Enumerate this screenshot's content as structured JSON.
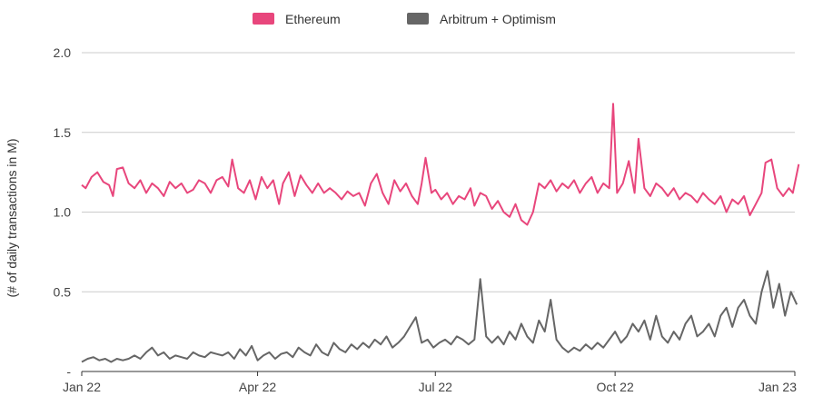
{
  "chart_data": {
    "type": "line",
    "title": "",
    "xlabel": "",
    "ylabel": "(# of daily transactions in M)",
    "ylim": [
      0,
      2.0
    ],
    "y_ticks": [
      {
        "value": 0,
        "label": "-"
      },
      {
        "value": 0.5,
        "label": "0.5"
      },
      {
        "value": 1.0,
        "label": "1.0"
      },
      {
        "value": 1.5,
        "label": "1.5"
      },
      {
        "value": 2.0,
        "label": "2.0"
      }
    ],
    "x_ticks": [
      {
        "date": "2022-01-01",
        "label": "Jan 22"
      },
      {
        "date": "2022-04-01",
        "label": "Apr 22"
      },
      {
        "date": "2022-07-01",
        "label": "Jul 22"
      },
      {
        "date": "2022-10-01",
        "label": "Oct 22"
      },
      {
        "date": "2023-01-01",
        "label": "Jan 23"
      }
    ],
    "grid": true,
    "legend_position": "top-center",
    "series": [
      {
        "name": "Ethereum",
        "color": "#e8467c",
        "points": [
          [
            "2022-01-01",
            1.17
          ],
          [
            "2022-01-03",
            1.15
          ],
          [
            "2022-01-06",
            1.22
          ],
          [
            "2022-01-09",
            1.25
          ],
          [
            "2022-01-12",
            1.19
          ],
          [
            "2022-01-15",
            1.17
          ],
          [
            "2022-01-17",
            1.1
          ],
          [
            "2022-01-19",
            1.27
          ],
          [
            "2022-01-22",
            1.28
          ],
          [
            "2022-01-25",
            1.18
          ],
          [
            "2022-01-28",
            1.15
          ],
          [
            "2022-01-31",
            1.2
          ],
          [
            "2022-02-03",
            1.12
          ],
          [
            "2022-02-06",
            1.18
          ],
          [
            "2022-02-09",
            1.15
          ],
          [
            "2022-02-12",
            1.1
          ],
          [
            "2022-02-15",
            1.19
          ],
          [
            "2022-02-18",
            1.15
          ],
          [
            "2022-02-21",
            1.18
          ],
          [
            "2022-02-24",
            1.12
          ],
          [
            "2022-02-27",
            1.14
          ],
          [
            "2022-03-02",
            1.2
          ],
          [
            "2022-03-05",
            1.18
          ],
          [
            "2022-03-08",
            1.12
          ],
          [
            "2022-03-11",
            1.2
          ],
          [
            "2022-03-14",
            1.22
          ],
          [
            "2022-03-17",
            1.16
          ],
          [
            "2022-03-19",
            1.33
          ],
          [
            "2022-03-22",
            1.15
          ],
          [
            "2022-03-25",
            1.12
          ],
          [
            "2022-03-28",
            1.2
          ],
          [
            "2022-03-31",
            1.08
          ],
          [
            "2022-04-03",
            1.22
          ],
          [
            "2022-04-06",
            1.15
          ],
          [
            "2022-04-09",
            1.2
          ],
          [
            "2022-04-12",
            1.05
          ],
          [
            "2022-04-14",
            1.18
          ],
          [
            "2022-04-17",
            1.25
          ],
          [
            "2022-04-20",
            1.1
          ],
          [
            "2022-04-23",
            1.23
          ],
          [
            "2022-04-26",
            1.17
          ],
          [
            "2022-04-29",
            1.12
          ],
          [
            "2022-05-02",
            1.18
          ],
          [
            "2022-05-05",
            1.12
          ],
          [
            "2022-05-08",
            1.15
          ],
          [
            "2022-05-11",
            1.12
          ],
          [
            "2022-05-14",
            1.08
          ],
          [
            "2022-05-17",
            1.13
          ],
          [
            "2022-05-20",
            1.1
          ],
          [
            "2022-05-23",
            1.12
          ],
          [
            "2022-05-26",
            1.04
          ],
          [
            "2022-05-29",
            1.18
          ],
          [
            "2022-06-01",
            1.24
          ],
          [
            "2022-06-04",
            1.12
          ],
          [
            "2022-06-07",
            1.05
          ],
          [
            "2022-06-10",
            1.2
          ],
          [
            "2022-06-13",
            1.13
          ],
          [
            "2022-06-16",
            1.18
          ],
          [
            "2022-06-19",
            1.1
          ],
          [
            "2022-06-22",
            1.05
          ],
          [
            "2022-06-24",
            1.18
          ],
          [
            "2022-06-26",
            1.34
          ],
          [
            "2022-06-29",
            1.12
          ],
          [
            "2022-07-01",
            1.14
          ],
          [
            "2022-07-04",
            1.08
          ],
          [
            "2022-07-07",
            1.12
          ],
          [
            "2022-07-10",
            1.05
          ],
          [
            "2022-07-13",
            1.1
          ],
          [
            "2022-07-16",
            1.08
          ],
          [
            "2022-07-19",
            1.15
          ],
          [
            "2022-07-21",
            1.04
          ],
          [
            "2022-07-24",
            1.12
          ],
          [
            "2022-07-27",
            1.1
          ],
          [
            "2022-07-30",
            1.02
          ],
          [
            "2022-08-02",
            1.07
          ],
          [
            "2022-08-05",
            1.0
          ],
          [
            "2022-08-08",
            0.97
          ],
          [
            "2022-08-11",
            1.05
          ],
          [
            "2022-08-14",
            0.95
          ],
          [
            "2022-08-17",
            0.92
          ],
          [
            "2022-08-20",
            1.0
          ],
          [
            "2022-08-23",
            1.18
          ],
          [
            "2022-08-26",
            1.15
          ],
          [
            "2022-08-29",
            1.2
          ],
          [
            "2022-09-01",
            1.13
          ],
          [
            "2022-09-04",
            1.18
          ],
          [
            "2022-09-07",
            1.15
          ],
          [
            "2022-09-10",
            1.2
          ],
          [
            "2022-09-13",
            1.12
          ],
          [
            "2022-09-16",
            1.18
          ],
          [
            "2022-09-19",
            1.22
          ],
          [
            "2022-09-22",
            1.12
          ],
          [
            "2022-09-25",
            1.18
          ],
          [
            "2022-09-28",
            1.15
          ],
          [
            "2022-09-30",
            1.68
          ],
          [
            "2022-10-02",
            1.12
          ],
          [
            "2022-10-05",
            1.18
          ],
          [
            "2022-10-08",
            1.32
          ],
          [
            "2022-10-11",
            1.12
          ],
          [
            "2022-10-13",
            1.46
          ],
          [
            "2022-10-16",
            1.15
          ],
          [
            "2022-10-19",
            1.1
          ],
          [
            "2022-10-22",
            1.18
          ],
          [
            "2022-10-25",
            1.15
          ],
          [
            "2022-10-28",
            1.1
          ],
          [
            "2022-10-31",
            1.15
          ],
          [
            "2022-11-03",
            1.08
          ],
          [
            "2022-11-06",
            1.12
          ],
          [
            "2022-11-09",
            1.1
          ],
          [
            "2022-11-12",
            1.06
          ],
          [
            "2022-11-15",
            1.12
          ],
          [
            "2022-11-18",
            1.08
          ],
          [
            "2022-11-21",
            1.05
          ],
          [
            "2022-11-24",
            1.1
          ],
          [
            "2022-11-27",
            1.0
          ],
          [
            "2022-11-30",
            1.08
          ],
          [
            "2022-12-03",
            1.05
          ],
          [
            "2022-12-06",
            1.1
          ],
          [
            "2022-12-09",
            0.98
          ],
          [
            "2022-12-12",
            1.05
          ],
          [
            "2022-12-15",
            1.12
          ],
          [
            "2022-12-17",
            1.31
          ],
          [
            "2022-12-20",
            1.33
          ],
          [
            "2022-12-23",
            1.15
          ],
          [
            "2022-12-26",
            1.1
          ],
          [
            "2022-12-29",
            1.15
          ],
          [
            "2022-12-31",
            1.12
          ],
          [
            "2023-01-03",
            1.3
          ]
        ]
      },
      {
        "name": "Arbitrum + Optimism",
        "color": "#666666",
        "points": [
          [
            "2022-01-01",
            0.06
          ],
          [
            "2022-01-04",
            0.08
          ],
          [
            "2022-01-07",
            0.09
          ],
          [
            "2022-01-10",
            0.07
          ],
          [
            "2022-01-13",
            0.08
          ],
          [
            "2022-01-16",
            0.06
          ],
          [
            "2022-01-19",
            0.08
          ],
          [
            "2022-01-22",
            0.07
          ],
          [
            "2022-01-25",
            0.08
          ],
          [
            "2022-01-28",
            0.1
          ],
          [
            "2022-01-31",
            0.08
          ],
          [
            "2022-02-03",
            0.12
          ],
          [
            "2022-02-06",
            0.15
          ],
          [
            "2022-02-09",
            0.1
          ],
          [
            "2022-02-12",
            0.12
          ],
          [
            "2022-02-15",
            0.08
          ],
          [
            "2022-02-18",
            0.1
          ],
          [
            "2022-02-21",
            0.09
          ],
          [
            "2022-02-24",
            0.08
          ],
          [
            "2022-02-27",
            0.12
          ],
          [
            "2022-03-02",
            0.1
          ],
          [
            "2022-03-05",
            0.09
          ],
          [
            "2022-03-08",
            0.12
          ],
          [
            "2022-03-11",
            0.11
          ],
          [
            "2022-03-14",
            0.1
          ],
          [
            "2022-03-17",
            0.12
          ],
          [
            "2022-03-20",
            0.08
          ],
          [
            "2022-03-23",
            0.14
          ],
          [
            "2022-03-26",
            0.1
          ],
          [
            "2022-03-29",
            0.16
          ],
          [
            "2022-04-01",
            0.07
          ],
          [
            "2022-04-04",
            0.1
          ],
          [
            "2022-04-07",
            0.12
          ],
          [
            "2022-04-10",
            0.08
          ],
          [
            "2022-04-13",
            0.11
          ],
          [
            "2022-04-16",
            0.12
          ],
          [
            "2022-04-19",
            0.09
          ],
          [
            "2022-04-22",
            0.15
          ],
          [
            "2022-04-25",
            0.12
          ],
          [
            "2022-04-28",
            0.1
          ],
          [
            "2022-05-01",
            0.17
          ],
          [
            "2022-05-04",
            0.12
          ],
          [
            "2022-05-07",
            0.1
          ],
          [
            "2022-05-10",
            0.18
          ],
          [
            "2022-05-13",
            0.14
          ],
          [
            "2022-05-16",
            0.12
          ],
          [
            "2022-05-19",
            0.17
          ],
          [
            "2022-05-22",
            0.14
          ],
          [
            "2022-05-25",
            0.18
          ],
          [
            "2022-05-28",
            0.15
          ],
          [
            "2022-05-31",
            0.2
          ],
          [
            "2022-06-03",
            0.17
          ],
          [
            "2022-06-06",
            0.22
          ],
          [
            "2022-06-09",
            0.15
          ],
          [
            "2022-06-12",
            0.18
          ],
          [
            "2022-06-15",
            0.22
          ],
          [
            "2022-06-18",
            0.28
          ],
          [
            "2022-06-21",
            0.34
          ],
          [
            "2022-06-24",
            0.18
          ],
          [
            "2022-06-27",
            0.2
          ],
          [
            "2022-06-30",
            0.15
          ],
          [
            "2022-07-03",
            0.18
          ],
          [
            "2022-07-06",
            0.2
          ],
          [
            "2022-07-09",
            0.17
          ],
          [
            "2022-07-12",
            0.22
          ],
          [
            "2022-07-15",
            0.2
          ],
          [
            "2022-07-18",
            0.17
          ],
          [
            "2022-07-21",
            0.2
          ],
          [
            "2022-07-24",
            0.58
          ],
          [
            "2022-07-27",
            0.22
          ],
          [
            "2022-07-30",
            0.18
          ],
          [
            "2022-08-02",
            0.22
          ],
          [
            "2022-08-05",
            0.17
          ],
          [
            "2022-08-08",
            0.25
          ],
          [
            "2022-08-11",
            0.2
          ],
          [
            "2022-08-14",
            0.3
          ],
          [
            "2022-08-17",
            0.22
          ],
          [
            "2022-08-20",
            0.18
          ],
          [
            "2022-08-23",
            0.32
          ],
          [
            "2022-08-26",
            0.25
          ],
          [
            "2022-08-29",
            0.45
          ],
          [
            "2022-09-01",
            0.2
          ],
          [
            "2022-09-04",
            0.15
          ],
          [
            "2022-09-07",
            0.12
          ],
          [
            "2022-09-10",
            0.15
          ],
          [
            "2022-09-13",
            0.13
          ],
          [
            "2022-09-16",
            0.17
          ],
          [
            "2022-09-19",
            0.14
          ],
          [
            "2022-09-22",
            0.18
          ],
          [
            "2022-09-25",
            0.15
          ],
          [
            "2022-09-28",
            0.2
          ],
          [
            "2022-10-01",
            0.25
          ],
          [
            "2022-10-04",
            0.18
          ],
          [
            "2022-10-07",
            0.22
          ],
          [
            "2022-10-10",
            0.3
          ],
          [
            "2022-10-13",
            0.25
          ],
          [
            "2022-10-16",
            0.32
          ],
          [
            "2022-10-19",
            0.2
          ],
          [
            "2022-10-22",
            0.35
          ],
          [
            "2022-10-25",
            0.22
          ],
          [
            "2022-10-28",
            0.18
          ],
          [
            "2022-10-31",
            0.25
          ],
          [
            "2022-11-03",
            0.2
          ],
          [
            "2022-11-06",
            0.3
          ],
          [
            "2022-11-09",
            0.35
          ],
          [
            "2022-11-12",
            0.22
          ],
          [
            "2022-11-15",
            0.25
          ],
          [
            "2022-11-18",
            0.3
          ],
          [
            "2022-11-21",
            0.22
          ],
          [
            "2022-11-24",
            0.35
          ],
          [
            "2022-11-27",
            0.4
          ],
          [
            "2022-11-30",
            0.28
          ],
          [
            "2022-12-03",
            0.4
          ],
          [
            "2022-12-06",
            0.45
          ],
          [
            "2022-12-09",
            0.35
          ],
          [
            "2022-12-12",
            0.3
          ],
          [
            "2022-12-15",
            0.5
          ],
          [
            "2022-12-18",
            0.63
          ],
          [
            "2022-12-21",
            0.4
          ],
          [
            "2022-12-24",
            0.55
          ],
          [
            "2022-12-27",
            0.35
          ],
          [
            "2022-12-30",
            0.5
          ],
          [
            "2023-01-02",
            0.42
          ]
        ]
      }
    ]
  }
}
